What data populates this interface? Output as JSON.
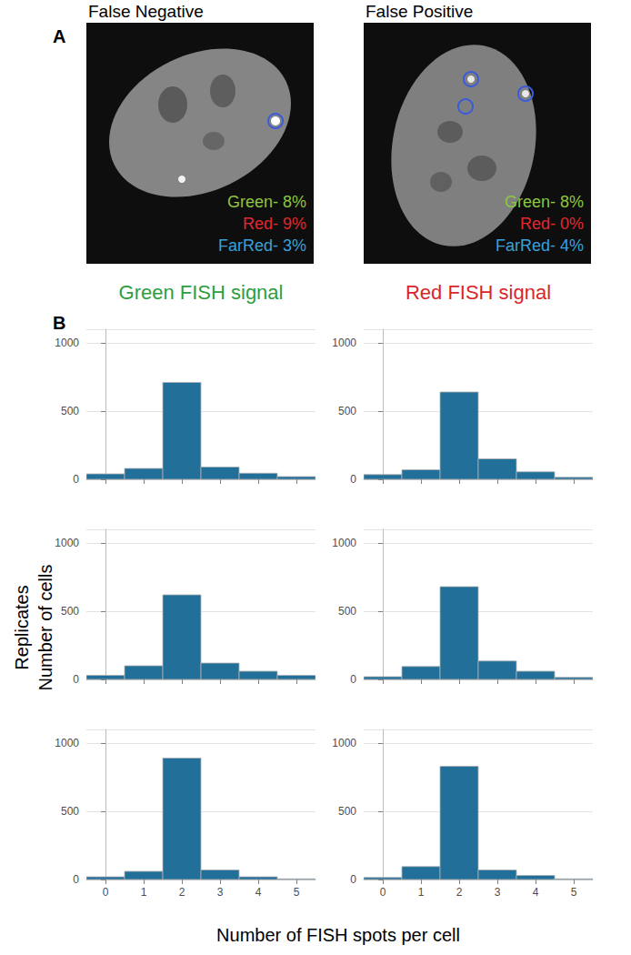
{
  "panels": {
    "A": "A",
    "B": "B"
  },
  "images": [
    {
      "title": "False Negative",
      "labels": [
        {
          "text": "Green- 8%",
          "color": "#8dc63f"
        },
        {
          "text": "Red- 9%",
          "color": "#e0282e"
        },
        {
          "text": "FarRed- 3%",
          "color": "#3aa0d8"
        }
      ]
    },
    {
      "title": "False Positive",
      "labels": [
        {
          "text": "Green- 8%",
          "color": "#8dc63f"
        },
        {
          "text": "Red- 0%",
          "color": "#e0282e"
        },
        {
          "text": "FarRed- 4%",
          "color": "#3aa0d8"
        }
      ]
    }
  ],
  "column_titles": [
    {
      "text": "Green FISH signal",
      "color": "#2e9e3e"
    },
    {
      "text": "Red FISH signal",
      "color": "#d7262b"
    }
  ],
  "ylabel": [
    "Replicates",
    "Number of cells"
  ],
  "xlabel": "Number of FISH spots per cell",
  "chart_data": [
    {
      "type": "histogram",
      "bins": [
        -0.5,
        0.5,
        1.5,
        2.5,
        3.5,
        4.5,
        5.5
      ],
      "values": [
        40,
        80,
        710,
        90,
        45,
        20
      ],
      "color": "#22709a",
      "xlim": [
        -0.5,
        5.5
      ],
      "xticks": [
        0,
        1,
        2,
        3,
        4,
        5
      ],
      "ylim": [
        0,
        1100
      ],
      "yticks": [
        0,
        500,
        1000
      ],
      "grid": true,
      "tick_labels": "y"
    },
    {
      "type": "histogram",
      "bins": [
        -0.5,
        0.5,
        1.5,
        2.5,
        3.5,
        4.5,
        5.5
      ],
      "values": [
        35,
        70,
        640,
        150,
        55,
        15
      ],
      "color": "#22709a",
      "xlim": [
        -0.5,
        5.5
      ],
      "xticks": [
        0,
        1,
        2,
        3,
        4,
        5
      ],
      "ylim": [
        0,
        1100
      ],
      "yticks": [
        0,
        500,
        1000
      ],
      "grid": true,
      "tick_labels": "y"
    },
    {
      "type": "histogram",
      "bins": [
        -0.5,
        0.5,
        1.5,
        2.5,
        3.5,
        4.5,
        5.5
      ],
      "values": [
        30,
        100,
        620,
        120,
        60,
        30
      ],
      "color": "#22709a",
      "xlim": [
        -0.5,
        5.5
      ],
      "xticks": [
        0,
        1,
        2,
        3,
        4,
        5
      ],
      "ylim": [
        0,
        1100
      ],
      "yticks": [
        0,
        500,
        1000
      ],
      "grid": true,
      "tick_labels": "y"
    },
    {
      "type": "histogram",
      "bins": [
        -0.5,
        0.5,
        1.5,
        2.5,
        3.5,
        4.5,
        5.5
      ],
      "values": [
        20,
        95,
        680,
        135,
        60,
        15
      ],
      "color": "#22709a",
      "xlim": [
        -0.5,
        5.5
      ],
      "xticks": [
        0,
        1,
        2,
        3,
        4,
        5
      ],
      "ylim": [
        0,
        1100
      ],
      "yticks": [
        0,
        500,
        1000
      ],
      "grid": true,
      "tick_labels": "y"
    },
    {
      "type": "histogram",
      "bins": [
        -0.5,
        0.5,
        1.5,
        2.5,
        3.5,
        4.5,
        5.5
      ],
      "values": [
        20,
        60,
        890,
        70,
        20,
        5
      ],
      "color": "#22709a",
      "xlim": [
        -0.5,
        5.5
      ],
      "xticks": [
        0,
        1,
        2,
        3,
        4,
        5
      ],
      "ylim": [
        0,
        1100
      ],
      "yticks": [
        0,
        500,
        1000
      ],
      "grid": true,
      "tick_labels": true
    },
    {
      "type": "histogram",
      "bins": [
        -0.5,
        0.5,
        1.5,
        2.5,
        3.5,
        4.5,
        5.5
      ],
      "values": [
        15,
        95,
        830,
        70,
        30,
        5
      ],
      "color": "#22709a",
      "xlim": [
        -0.5,
        5.5
      ],
      "xticks": [
        0,
        1,
        2,
        3,
        4,
        5
      ],
      "ylim": [
        0,
        1100
      ],
      "yticks": [
        0,
        500,
        1000
      ],
      "grid": true,
      "tick_labels": true
    }
  ]
}
